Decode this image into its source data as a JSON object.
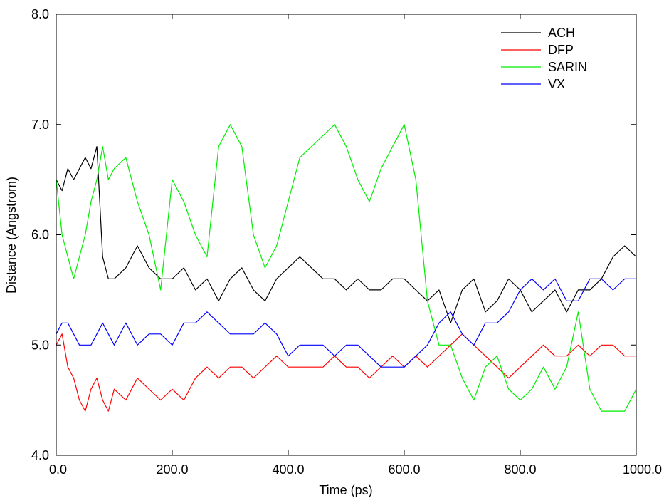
{
  "chart_data": {
    "type": "line",
    "xlabel": "Time (ps)",
    "ylabel": "Distance (Angstrom)",
    "xlim": [
      0,
      1000
    ],
    "ylim": [
      4.0,
      8.0
    ],
    "x_ticks": [
      "0.0",
      "200.0",
      "400.0",
      "600.0",
      "800.0",
      "1000.0"
    ],
    "y_ticks": [
      "4.0",
      "5.0",
      "6.0",
      "7.0",
      "8.0"
    ],
    "grid": false,
    "legend_position": "top-right",
    "x": [
      0,
      10,
      20,
      30,
      40,
      50,
      60,
      70,
      80,
      90,
      100,
      120,
      140,
      160,
      180,
      200,
      220,
      240,
      260,
      280,
      300,
      320,
      340,
      360,
      380,
      400,
      420,
      440,
      460,
      480,
      500,
      520,
      540,
      560,
      580,
      600,
      620,
      640,
      660,
      680,
      700,
      720,
      740,
      760,
      780,
      800,
      820,
      840,
      860,
      880,
      900,
      920,
      940,
      960,
      980,
      1000
    ],
    "series": [
      {
        "name": "ACH",
        "color": "#000000",
        "values": [
          6.5,
          6.4,
          6.6,
          6.5,
          6.6,
          6.7,
          6.6,
          6.8,
          5.8,
          5.6,
          5.6,
          5.7,
          5.9,
          5.7,
          5.6,
          5.6,
          5.7,
          5.5,
          5.6,
          5.4,
          5.6,
          5.7,
          5.5,
          5.4,
          5.6,
          5.7,
          5.8,
          5.7,
          5.6,
          5.6,
          5.5,
          5.6,
          5.5,
          5.5,
          5.6,
          5.6,
          5.5,
          5.4,
          5.5,
          5.2,
          5.5,
          5.6,
          5.3,
          5.4,
          5.6,
          5.5,
          5.3,
          5.4,
          5.5,
          5.3,
          5.5,
          5.5,
          5.6,
          5.8,
          5.9,
          5.8
        ]
      },
      {
        "name": "DFP",
        "color": "#ff0000",
        "values": [
          5.0,
          5.1,
          4.8,
          4.7,
          4.5,
          4.4,
          4.6,
          4.7,
          4.5,
          4.4,
          4.6,
          4.5,
          4.7,
          4.6,
          4.5,
          4.6,
          4.5,
          4.7,
          4.8,
          4.7,
          4.8,
          4.8,
          4.7,
          4.8,
          4.9,
          4.8,
          4.8,
          4.8,
          4.8,
          4.9,
          4.8,
          4.8,
          4.7,
          4.8,
          4.9,
          4.8,
          4.9,
          4.8,
          4.9,
          5.0,
          5.1,
          5.0,
          4.9,
          4.8,
          4.7,
          4.8,
          4.9,
          5.0,
          4.9,
          4.9,
          5.0,
          4.9,
          5.0,
          5.0,
          4.9,
          4.9
        ]
      },
      {
        "name": "SARIN",
        "color": "#00ee00",
        "values": [
          6.5,
          6.0,
          5.8,
          5.6,
          5.8,
          6.0,
          6.3,
          6.5,
          6.8,
          6.5,
          6.6,
          6.7,
          6.3,
          6.0,
          5.5,
          6.5,
          6.3,
          6.0,
          5.8,
          6.8,
          7.0,
          6.8,
          6.0,
          5.7,
          5.9,
          6.3,
          6.7,
          6.8,
          6.9,
          7.0,
          6.8,
          6.5,
          6.3,
          6.6,
          6.8,
          7.0,
          6.5,
          5.4,
          5.0,
          5.0,
          4.7,
          4.5,
          4.8,
          4.9,
          4.6,
          4.5,
          4.6,
          4.8,
          4.6,
          4.8,
          5.3,
          4.6,
          4.4,
          4.4,
          4.4,
          4.6
        ]
      },
      {
        "name": "VX",
        "color": "#0000ff",
        "values": [
          5.1,
          5.2,
          5.2,
          5.1,
          5.0,
          5.0,
          5.0,
          5.1,
          5.2,
          5.1,
          5.0,
          5.2,
          5.0,
          5.1,
          5.1,
          5.0,
          5.2,
          5.2,
          5.3,
          5.2,
          5.1,
          5.1,
          5.1,
          5.2,
          5.1,
          4.9,
          5.0,
          5.0,
          5.0,
          4.9,
          5.0,
          5.0,
          4.9,
          4.8,
          4.8,
          4.8,
          4.9,
          5.0,
          5.2,
          5.3,
          5.1,
          5.0,
          5.2,
          5.2,
          5.3,
          5.5,
          5.6,
          5.5,
          5.6,
          5.4,
          5.4,
          5.6,
          5.6,
          5.5,
          5.6,
          5.6
        ]
      }
    ]
  }
}
